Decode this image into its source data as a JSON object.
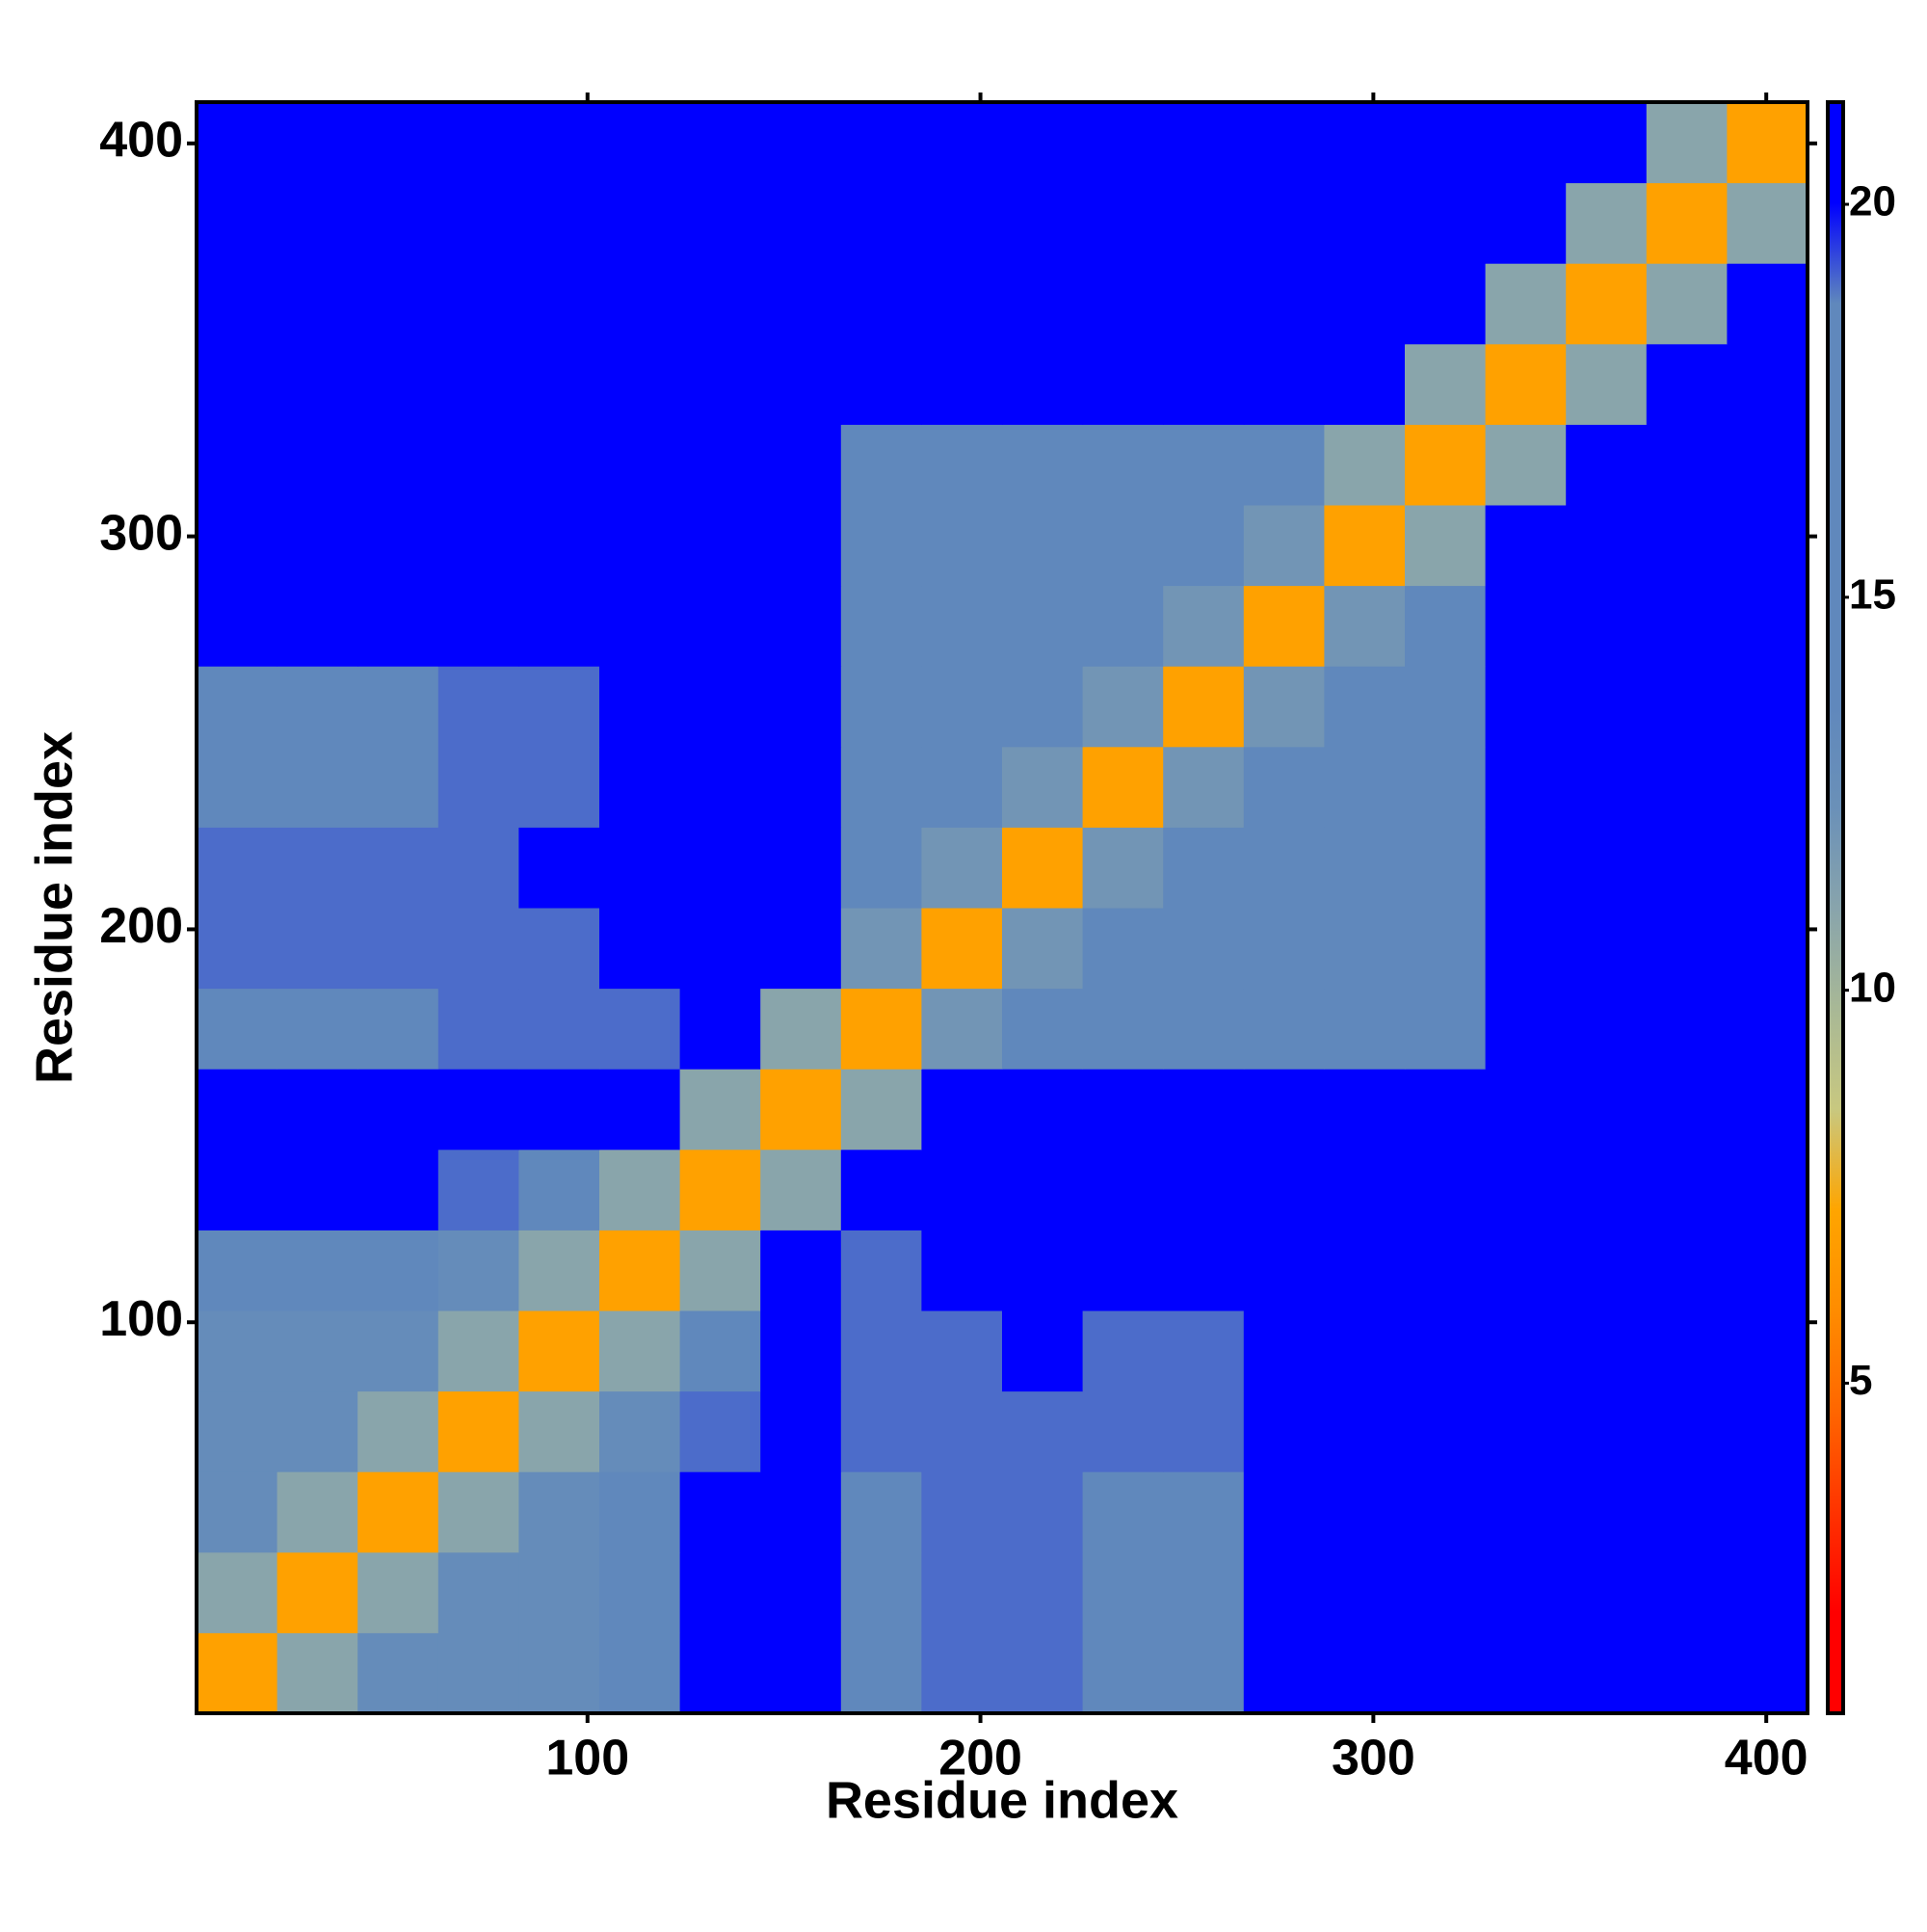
{
  "chart_data": {
    "type": "heatmap",
    "x_label": "Residue index",
    "y_label": "Residue index",
    "xlim": [
      0.5,
      410.5
    ],
    "ylim": [
      0.5,
      410.5
    ],
    "xticks": [
      100,
      200,
      300,
      400
    ],
    "yticks": [
      100,
      200,
      300,
      400
    ],
    "x_bins": [
      0.5,
      21,
      41.5,
      62,
      82.5,
      103,
      123.5,
      144,
      164.5,
      185,
      205.5,
      226,
      246.5,
      267,
      287.5,
      308,
      328.5,
      349,
      369.5,
      390,
      410.5
    ],
    "y_bins": [
      0.5,
      21,
      41.5,
      62,
      82.5,
      103,
      123.5,
      144,
      164.5,
      185,
      205.5,
      226,
      246.5,
      267,
      287.5,
      308,
      328.5,
      349,
      369.5,
      390,
      410.5
    ],
    "z": [
      [
        7,
        11,
        13,
        13,
        13,
        15,
        21,
        21,
        18,
        19,
        19,
        18,
        18,
        21,
        21,
        21,
        21,
        21,
        21,
        21
      ],
      [
        11,
        7,
        11,
        13,
        13,
        15,
        21,
        21,
        18,
        19,
        19,
        18,
        18,
        21,
        21,
        21,
        21,
        21,
        21,
        21
      ],
      [
        13,
        11,
        7,
        11,
        13,
        15,
        21,
        21,
        18,
        19,
        19,
        18,
        18,
        21,
        21,
        21,
        21,
        21,
        21,
        21
      ],
      [
        13,
        13,
        11,
        7,
        11,
        13,
        19,
        21,
        19,
        19,
        19,
        19,
        19,
        21,
        21,
        21,
        21,
        21,
        21,
        21
      ],
      [
        13,
        13,
        13,
        11,
        7,
        11,
        18,
        21,
        19,
        19,
        21,
        19,
        19,
        21,
        21,
        21,
        21,
        21,
        21,
        21
      ],
      [
        15,
        15,
        15,
        13,
        11,
        7,
        11,
        21,
        19,
        21,
        21,
        21,
        21,
        21,
        21,
        21,
        21,
        21,
        21,
        21
      ],
      [
        21,
        21,
        21,
        19,
        18,
        11,
        7,
        11,
        21,
        21,
        21,
        21,
        21,
        21,
        21,
        21,
        21,
        21,
        21,
        21
      ],
      [
        21,
        21,
        21,
        21,
        21,
        21,
        11,
        7,
        11,
        21,
        21,
        21,
        21,
        21,
        21,
        21,
        21,
        21,
        21,
        21
      ],
      [
        18,
        18,
        18,
        19,
        19,
        19,
        21,
        11,
        7,
        12,
        14,
        14,
        14,
        14,
        14,
        17,
        21,
        21,
        21,
        21
      ],
      [
        19,
        19,
        19,
        19,
        19,
        21,
        21,
        21,
        12,
        7,
        12,
        14,
        14,
        14,
        14,
        17,
        21,
        21,
        21,
        21
      ],
      [
        19,
        19,
        19,
        19,
        21,
        21,
        21,
        21,
        14,
        12,
        7,
        12,
        14,
        14,
        14,
        17,
        21,
        21,
        21,
        21
      ],
      [
        18,
        18,
        18,
        19,
        19,
        21,
        21,
        21,
        14,
        14,
        12,
        7,
        12,
        14,
        14,
        17,
        21,
        21,
        21,
        21
      ],
      [
        18,
        18,
        18,
        19,
        19,
        21,
        21,
        21,
        14,
        14,
        14,
        12,
        7,
        12,
        14,
        17,
        21,
        21,
        21,
        21
      ],
      [
        21,
        21,
        21,
        21,
        21,
        21,
        21,
        21,
        14,
        14,
        14,
        14,
        12,
        7,
        12,
        14,
        21,
        21,
        21,
        21
      ],
      [
        21,
        21,
        21,
        21,
        21,
        21,
        21,
        21,
        14,
        14,
        14,
        14,
        14,
        12,
        7,
        11,
        21,
        21,
        21,
        21
      ],
      [
        21,
        21,
        21,
        21,
        21,
        21,
        21,
        21,
        17,
        17,
        17,
        17,
        17,
        14,
        11,
        7,
        11,
        21,
        21,
        21
      ],
      [
        21,
        21,
        21,
        21,
        21,
        21,
        21,
        21,
        21,
        21,
        21,
        21,
        21,
        21,
        21,
        11,
        7,
        11,
        21,
        21
      ],
      [
        21,
        21,
        21,
        21,
        21,
        21,
        21,
        21,
        21,
        21,
        21,
        21,
        21,
        21,
        21,
        21,
        11,
        7,
        11,
        21
      ],
      [
        21,
        21,
        21,
        21,
        21,
        21,
        21,
        21,
        21,
        21,
        21,
        21,
        21,
        21,
        21,
        21,
        21,
        11,
        7,
        11
      ],
      [
        21,
        21,
        21,
        21,
        21,
        21,
        21,
        21,
        21,
        21,
        21,
        21,
        21,
        21,
        21,
        21,
        21,
        21,
        11,
        7
      ]
    ],
    "clim": [
      0.8,
      21.3
    ],
    "cticks": [
      5,
      10,
      15,
      20
    ],
    "colors": [
      "#ff0000",
      "#ff0000",
      "#ff3300",
      "#ff6600",
      "#ff8c00",
      "#ffa500",
      "#c8c880",
      "#a8b896",
      "#88a4ac",
      "#6a90b8",
      "#6088bc",
      "#6088bc",
      "#6088bc",
      "#6088bc",
      "#6088bc",
      "#0000ff",
      "#0000ff"
    ]
  }
}
